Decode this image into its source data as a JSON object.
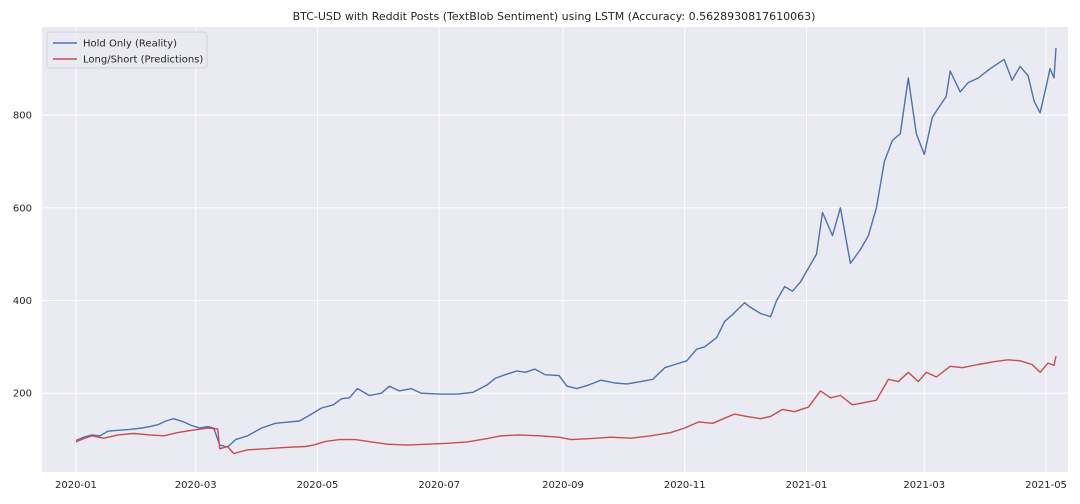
{
  "chart_data": {
    "type": "line",
    "title": "BTC-USD with Reddit Posts (TextBlob Sentiment) using LSTM (Accuracy: 0.5628930817610063)",
    "xlabel": "",
    "ylabel": "",
    "grid": true,
    "legend_position": "top-left",
    "x_ticks": [
      "2020-01",
      "2020-03",
      "2020-05",
      "2020-07",
      "2020-09",
      "2020-11",
      "2021-01",
      "2021-03",
      "2021-05"
    ],
    "y_ticks": [
      200,
      400,
      600,
      800
    ],
    "xlim": [
      "2019-12-15",
      "2021-05-12"
    ],
    "ylim": [
      30,
      990
    ],
    "colors": {
      "background": "#eaeaf2",
      "grid": "#ffffff",
      "hold": "#4c72b0",
      "longshort": "#c44e52"
    },
    "series": [
      {
        "name": "Hold Only (Reality)",
        "color": "#4c72b0",
        "points": [
          [
            "2020-01-01",
            98
          ],
          [
            "2020-01-05",
            105
          ],
          [
            "2020-01-09",
            110
          ],
          [
            "2020-01-13",
            108
          ],
          [
            "2020-01-17",
            118
          ],
          [
            "2020-01-22",
            120
          ],
          [
            "2020-01-28",
            122
          ],
          [
            "2020-02-03",
            125
          ],
          [
            "2020-02-07",
            128
          ],
          [
            "2020-02-11",
            132
          ],
          [
            "2020-02-15",
            140
          ],
          [
            "2020-02-19",
            145
          ],
          [
            "2020-02-24",
            138
          ],
          [
            "2020-02-28",
            130
          ],
          [
            "2020-03-03",
            125
          ],
          [
            "2020-03-07",
            128
          ],
          [
            "2020-03-10",
            125
          ],
          [
            "2020-03-13",
            88
          ],
          [
            "2020-03-17",
            84
          ],
          [
            "2020-03-21",
            100
          ],
          [
            "2020-03-27",
            108
          ],
          [
            "2020-04-03",
            125
          ],
          [
            "2020-04-10",
            135
          ],
          [
            "2020-04-17",
            138
          ],
          [
            "2020-04-22",
            140
          ],
          [
            "2020-04-28",
            155
          ],
          [
            "2020-05-03",
            168
          ],
          [
            "2020-05-09",
            175
          ],
          [
            "2020-05-13",
            188
          ],
          [
            "2020-05-17",
            190
          ],
          [
            "2020-05-21",
            210
          ],
          [
            "2020-05-27",
            195
          ],
          [
            "2020-06-02",
            200
          ],
          [
            "2020-06-06",
            215
          ],
          [
            "2020-06-11",
            205
          ],
          [
            "2020-06-17",
            210
          ],
          [
            "2020-06-22",
            200
          ],
          [
            "2020-07-01",
            198
          ],
          [
            "2020-07-10",
            198
          ],
          [
            "2020-07-18",
            202
          ],
          [
            "2020-07-25",
            218
          ],
          [
            "2020-07-29",
            232
          ],
          [
            "2020-08-03",
            240
          ],
          [
            "2020-08-09",
            248
          ],
          [
            "2020-08-13",
            245
          ],
          [
            "2020-08-18",
            252
          ],
          [
            "2020-08-23",
            240
          ],
          [
            "2020-08-30",
            238
          ],
          [
            "2020-09-03",
            215
          ],
          [
            "2020-09-08",
            210
          ],
          [
            "2020-09-14",
            218
          ],
          [
            "2020-09-20",
            228
          ],
          [
            "2020-09-27",
            222
          ],
          [
            "2020-10-03",
            220
          ],
          [
            "2020-10-10",
            225
          ],
          [
            "2020-10-16",
            230
          ],
          [
            "2020-10-22",
            255
          ],
          [
            "2020-10-27",
            262
          ],
          [
            "2020-11-02",
            270
          ],
          [
            "2020-11-07",
            295
          ],
          [
            "2020-11-11",
            300
          ],
          [
            "2020-11-17",
            320
          ],
          [
            "2020-11-21",
            355
          ],
          [
            "2020-11-25",
            370
          ],
          [
            "2020-12-01",
            395
          ],
          [
            "2020-12-04",
            385
          ],
          [
            "2020-12-09",
            372
          ],
          [
            "2020-12-14",
            365
          ],
          [
            "2020-12-17",
            400
          ],
          [
            "2020-12-21",
            430
          ],
          [
            "2020-12-25",
            420
          ],
          [
            "2020-12-29",
            440
          ],
          [
            "2021-01-02",
            470
          ],
          [
            "2021-01-06",
            500
          ],
          [
            "2021-01-09",
            590
          ],
          [
            "2021-01-14",
            540
          ],
          [
            "2021-01-18",
            600
          ],
          [
            "2021-01-23",
            480
          ],
          [
            "2021-01-28",
            510
          ],
          [
            "2021-02-01",
            540
          ],
          [
            "2021-02-05",
            600
          ],
          [
            "2021-02-09",
            700
          ],
          [
            "2021-02-13",
            745
          ],
          [
            "2021-02-17",
            760
          ],
          [
            "2021-02-21",
            880
          ],
          [
            "2021-02-25",
            760
          ],
          [
            "2021-03-01",
            715
          ],
          [
            "2021-03-05",
            795
          ],
          [
            "2021-03-08",
            815
          ],
          [
            "2021-03-12",
            840
          ],
          [
            "2021-03-14",
            895
          ],
          [
            "2021-03-19",
            850
          ],
          [
            "2021-03-23",
            870
          ],
          [
            "2021-03-28",
            880
          ],
          [
            "2021-04-03",
            900
          ],
          [
            "2021-04-10",
            920
          ],
          [
            "2021-04-14",
            875
          ],
          [
            "2021-04-18",
            905
          ],
          [
            "2021-04-22",
            885
          ],
          [
            "2021-04-25",
            830
          ],
          [
            "2021-04-28",
            805
          ],
          [
            "2021-05-01",
            860
          ],
          [
            "2021-05-03",
            900
          ],
          [
            "2021-05-05",
            880
          ],
          [
            "2021-05-06",
            945
          ]
        ]
      },
      {
        "name": "Long/Short (Predictions)",
        "color": "#c44e52",
        "points": [
          [
            "2020-01-01",
            95
          ],
          [
            "2020-01-05",
            102
          ],
          [
            "2020-01-09",
            108
          ],
          [
            "2020-01-15",
            103
          ],
          [
            "2020-01-22",
            110
          ],
          [
            "2020-01-30",
            113
          ],
          [
            "2020-02-07",
            110
          ],
          [
            "2020-02-14",
            108
          ],
          [
            "2020-02-21",
            115
          ],
          [
            "2020-02-28",
            120
          ],
          [
            "2020-03-07",
            125
          ],
          [
            "2020-03-12",
            123
          ],
          [
            "2020-03-13",
            80
          ],
          [
            "2020-03-17",
            85
          ],
          [
            "2020-03-20",
            70
          ],
          [
            "2020-03-27",
            78
          ],
          [
            "2020-04-05",
            80
          ],
          [
            "2020-04-15",
            83
          ],
          [
            "2020-04-25",
            85
          ],
          [
            "2020-04-29",
            88
          ],
          [
            "2020-05-05",
            96
          ],
          [
            "2020-05-12",
            100
          ],
          [
            "2020-05-20",
            100
          ],
          [
            "2020-05-28",
            95
          ],
          [
            "2020-06-05",
            90
          ],
          [
            "2020-06-15",
            88
          ],
          [
            "2020-06-25",
            90
          ],
          [
            "2020-07-05",
            92
          ],
          [
            "2020-07-15",
            95
          ],
          [
            "2020-07-25",
            102
          ],
          [
            "2020-08-01",
            108
          ],
          [
            "2020-08-10",
            110
          ],
          [
            "2020-08-20",
            108
          ],
          [
            "2020-08-30",
            105
          ],
          [
            "2020-09-05",
            100
          ],
          [
            "2020-09-15",
            102
          ],
          [
            "2020-09-25",
            105
          ],
          [
            "2020-10-05",
            103
          ],
          [
            "2020-10-15",
            108
          ],
          [
            "2020-10-25",
            115
          ],
          [
            "2020-11-01",
            125
          ],
          [
            "2020-11-08",
            138
          ],
          [
            "2020-11-15",
            135
          ],
          [
            "2020-11-22",
            148
          ],
          [
            "2020-11-26",
            155
          ],
          [
            "2020-12-02",
            150
          ],
          [
            "2020-12-09",
            145
          ],
          [
            "2020-12-14",
            150
          ],
          [
            "2020-12-20",
            165
          ],
          [
            "2020-12-26",
            160
          ],
          [
            "2021-01-02",
            170
          ],
          [
            "2021-01-08",
            205
          ],
          [
            "2021-01-13",
            190
          ],
          [
            "2021-01-18",
            195
          ],
          [
            "2021-01-24",
            175
          ],
          [
            "2021-01-30",
            180
          ],
          [
            "2021-02-05",
            185
          ],
          [
            "2021-02-11",
            230
          ],
          [
            "2021-02-16",
            225
          ],
          [
            "2021-02-21",
            245
          ],
          [
            "2021-02-26",
            225
          ],
          [
            "2021-03-02",
            245
          ],
          [
            "2021-03-07",
            235
          ],
          [
            "2021-03-14",
            258
          ],
          [
            "2021-03-20",
            255
          ],
          [
            "2021-03-28",
            262
          ],
          [
            "2021-04-05",
            268
          ],
          [
            "2021-04-12",
            272
          ],
          [
            "2021-04-18",
            270
          ],
          [
            "2021-04-24",
            262
          ],
          [
            "2021-04-28",
            245
          ],
          [
            "2021-05-02",
            265
          ],
          [
            "2021-05-05",
            260
          ],
          [
            "2021-05-06",
            280
          ]
        ]
      }
    ]
  }
}
